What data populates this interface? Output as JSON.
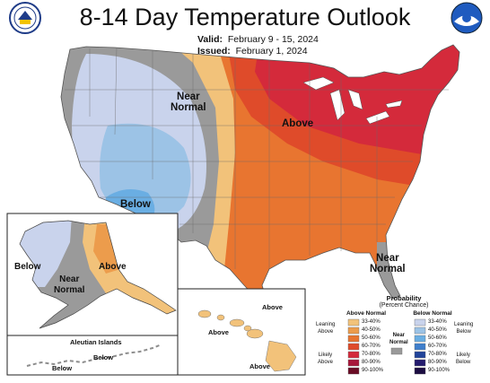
{
  "title": "8-14 Day Temperature Outlook",
  "valid": {
    "label": "Valid:",
    "value": "February 9 - 15, 2024"
  },
  "issued": {
    "label": "Issued:",
    "value": "February 1, 2024"
  },
  "logos": {
    "left": "doc-seal-icon",
    "right": "noaa-logo-icon"
  },
  "map_labels": {
    "near_normal_west": "Near\nNormal",
    "above_main": "Above",
    "below_main": "Below",
    "near_normal_se": "Near\nNormal",
    "alaska_below": "Below",
    "alaska_near_normal": "Near\nNormal",
    "alaska_above": "Above",
    "aleutian_title": "Aleutian Islands",
    "aleutian_below": "Below",
    "aleutian_below2": "Below",
    "hawaii_above1": "Above",
    "hawaii_above2": "Above",
    "hawaii_above3": "Above"
  },
  "legend": {
    "title": "Probability",
    "subtitle": "(Percent Chance)",
    "above_header": "Above Normal",
    "below_header": "Below Normal",
    "near_normal": "Near\nNormal",
    "leaning_above": "Leaning\nAbove",
    "likely_above": "Likely\nAbove",
    "leaning_below": "Leaning\nBelow",
    "likely_below": "Likely\nBelow",
    "above_bins": [
      {
        "range": "33-40%",
        "color": "#f2c27a"
      },
      {
        "range": "40-50%",
        "color": "#ec9c4c"
      },
      {
        "range": "50-60%",
        "color": "#e87530"
      },
      {
        "range": "60-70%",
        "color": "#df4b2a"
      },
      {
        "range": "70-80%",
        "color": "#d42a3b"
      },
      {
        "range": "80-90%",
        "color": "#a8163a"
      },
      {
        "range": "90-100%",
        "color": "#6a0c25"
      }
    ],
    "below_bins": [
      {
        "range": "33-40%",
        "color": "#c9d3ec"
      },
      {
        "range": "40-50%",
        "color": "#9cc3e6"
      },
      {
        "range": "50-60%",
        "color": "#6aaee3"
      },
      {
        "range": "60-70%",
        "color": "#3f7fcc"
      },
      {
        "range": "70-80%",
        "color": "#22449a"
      },
      {
        "range": "80-90%",
        "color": "#241b6e"
      },
      {
        "range": "90-100%",
        "color": "#1c0d42"
      }
    ],
    "near_color": "#9a9a9a"
  }
}
